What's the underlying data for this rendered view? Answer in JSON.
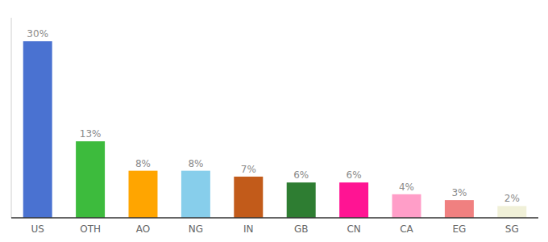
{
  "chart_data": {
    "type": "bar",
    "categories": [
      "US",
      "OTH",
      "AO",
      "NG",
      "IN",
      "GB",
      "CN",
      "CA",
      "EG",
      "SG"
    ],
    "values": [
      30,
      13,
      8,
      8,
      7,
      6,
      6,
      4,
      3,
      2
    ],
    "value_labels": [
      "30%",
      "13%",
      "8%",
      "8%",
      "7%",
      "6%",
      "6%",
      "4%",
      "3%",
      "2%"
    ],
    "colors": [
      "#4a72d1",
      "#3dbb3d",
      "#ffa500",
      "#87ceeb",
      "#c25b1a",
      "#2e7d32",
      "#ff1493",
      "#ff9ec8",
      "#f08080",
      "#f0f0d8"
    ],
    "ylim": [
      0,
      34
    ],
    "data_labels": true,
    "tick_labels": "x",
    "grid": false
  }
}
